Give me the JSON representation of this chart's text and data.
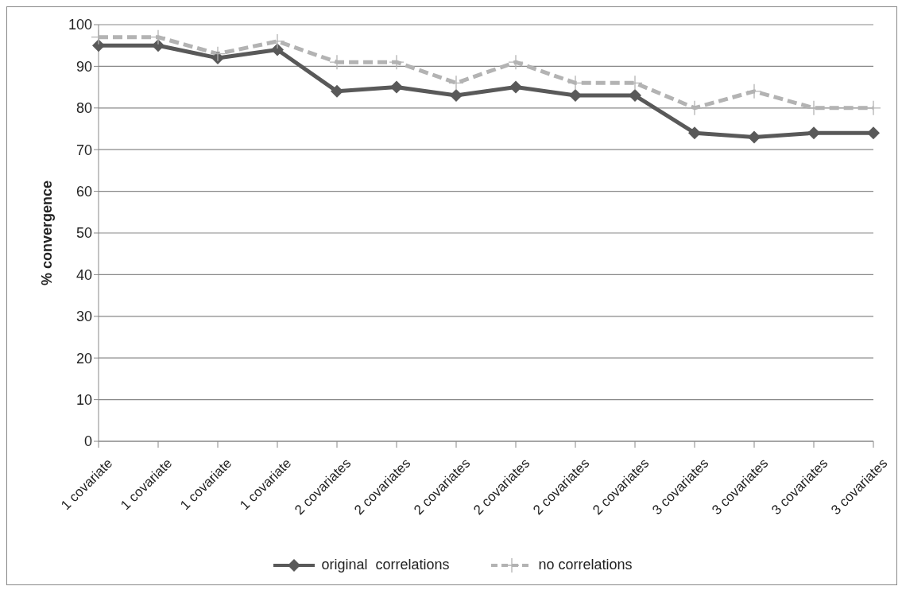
{
  "chart_data": {
    "type": "line",
    "ylabel": "% convergence",
    "categories": [
      "1 covariate",
      "1 covariate",
      "1 covariate",
      "1 covariate",
      "2 covariates",
      "2 covariates",
      "2 covariates",
      "2 covariates",
      "2 covariates",
      "2 covariates",
      "3 covariates",
      "3 covariates",
      "3 covariates",
      "3 covariates"
    ],
    "series": [
      {
        "name": "original  correlations",
        "color": "#595959",
        "marker": "diamond",
        "line_style": "solid",
        "values": [
          95,
          95,
          92,
          94,
          84,
          85,
          83,
          85,
          83,
          83,
          74,
          73,
          74,
          74
        ]
      },
      {
        "name": "no correlations",
        "color": "#b3b3b3",
        "marker": "cross",
        "line_style": "dashed",
        "values": [
          97,
          97,
          93,
          96,
          91,
          91,
          86,
          91,
          86,
          86,
          80,
          84,
          80,
          80
        ]
      }
    ],
    "ylim": [
      0,
      100
    ],
    "yticks": [
      0,
      10,
      20,
      30,
      40,
      50,
      60,
      70,
      80,
      90,
      100
    ],
    "grid": "y",
    "legend": "bottom"
  }
}
